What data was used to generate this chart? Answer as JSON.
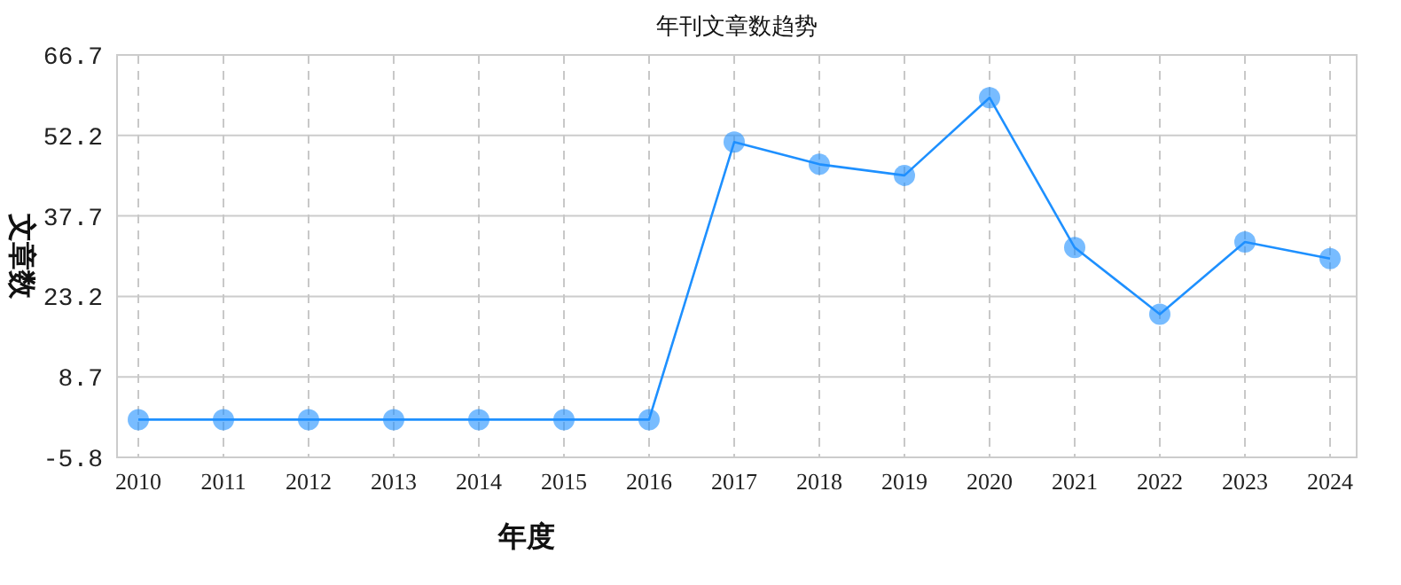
{
  "chart_data": {
    "type": "line",
    "title": "年刊文章数趋势",
    "xlabel": "年度",
    "ylabel": "文章数",
    "categories": [
      "2010",
      "2011",
      "2012",
      "2013",
      "2014",
      "2015",
      "2016",
      "2017",
      "2018",
      "2019",
      "2020",
      "2021",
      "2022",
      "2023",
      "2024"
    ],
    "series": [
      {
        "color": "#1e90ff",
        "values": [
          1,
          1,
          1,
          1,
          1,
          1,
          1,
          51,
          47,
          45,
          59,
          32,
          20,
          33,
          30
        ]
      }
    ],
    "ylim": [
      -5.8,
      66.7
    ],
    "yticks": [
      -5.8,
      8.7,
      23.2,
      37.7,
      52.2,
      66.7
    ],
    "grid": true,
    "marker": "circle",
    "line_style": "solid"
  }
}
